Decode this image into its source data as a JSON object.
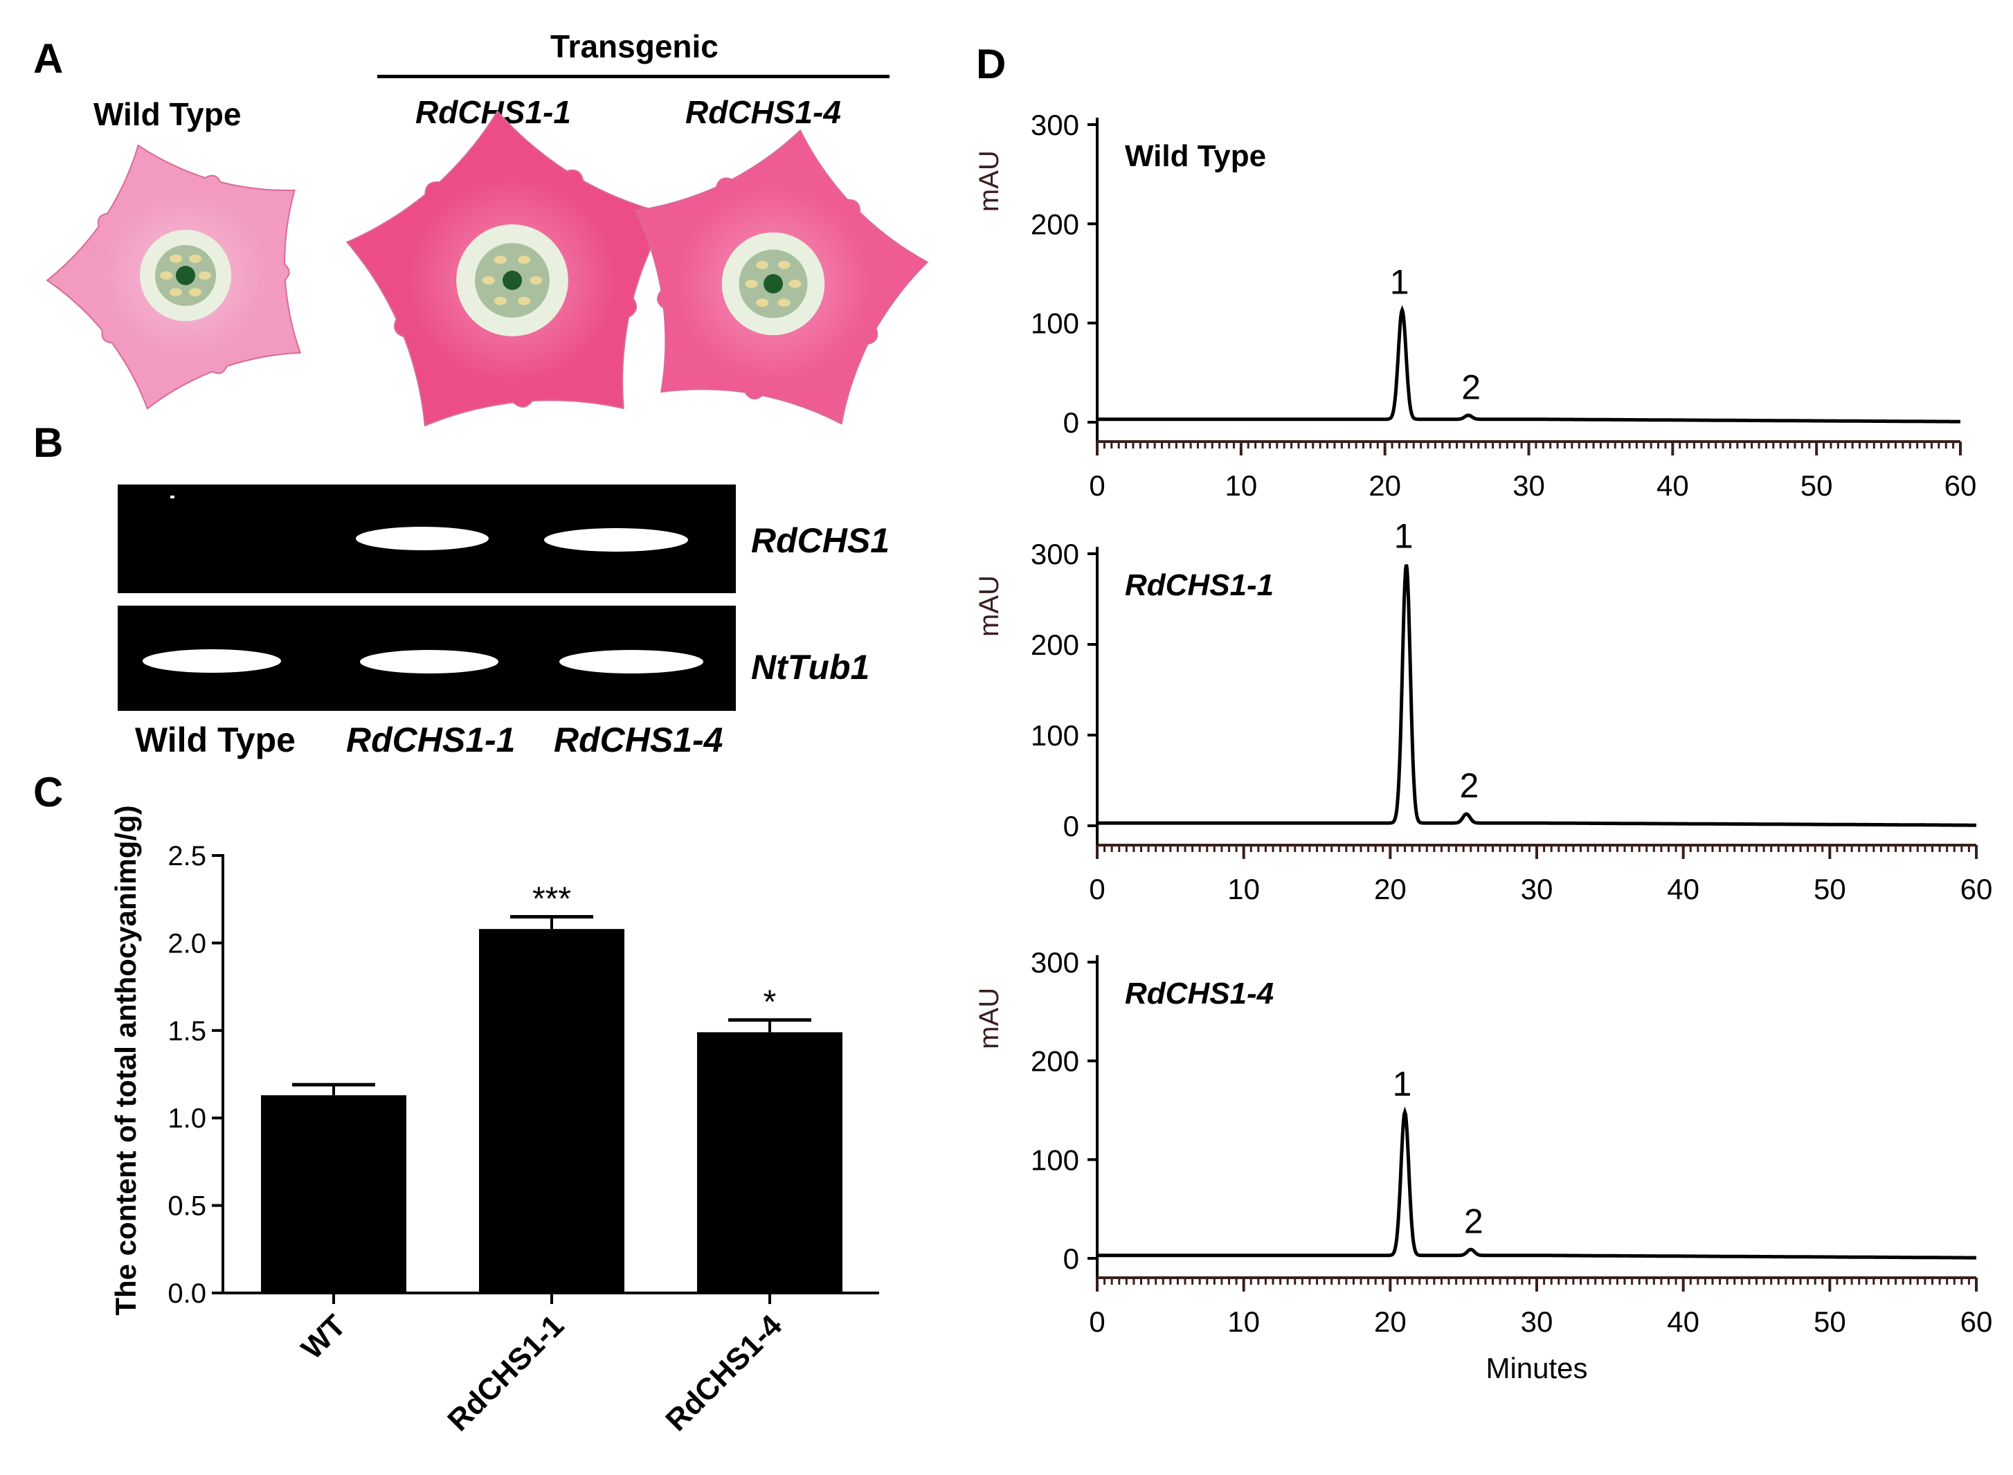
{
  "panels": {
    "a": {
      "letter": "A",
      "transgenic_label": "Transgenic",
      "flowers": [
        {
          "label": "Wild Type",
          "italic": false,
          "color": "#f29ac0"
        },
        {
          "label": "RdCHS1-1",
          "italic": true,
          "color": "#ec4d87"
        },
        {
          "label": "RdCHS1-4",
          "italic": true,
          "color": "#ef5c93"
        }
      ]
    },
    "b": {
      "letter": "B",
      "lanes": [
        "Wild Type",
        "RdCHS1-1",
        "RdCHS1-4"
      ],
      "genes": [
        "RdCHS1",
        "NtTub1"
      ]
    },
    "c": {
      "letter": "C"
    },
    "d": {
      "letter": "D"
    }
  },
  "chart_data": [
    {
      "type": "bar",
      "panel": "C",
      "categories": [
        "WT",
        "RdCHS1-1",
        "RdCHS1-4"
      ],
      "values": [
        1.13,
        2.08,
        1.49
      ],
      "errors": [
        0.06,
        0.07,
        0.07
      ],
      "significance": [
        "",
        "***",
        "*"
      ],
      "ylabel": "The content of total anthocyanimg/g)",
      "ylim": [
        0,
        2.5
      ],
      "yticks": [
        "0.0",
        "0.5",
        "1.0",
        "1.5",
        "2.0",
        "2.5"
      ],
      "bar_color": "#000000"
    },
    {
      "type": "line",
      "panel": "D",
      "sample": "Wild Type",
      "ylabel": "mAU",
      "xlim": [
        0,
        60
      ],
      "ylim": [
        0,
        300
      ],
      "xticks": [
        "0",
        "10",
        "20",
        "30",
        "40",
        "50",
        "60"
      ],
      "yticks": [
        "0",
        "100",
        "200",
        "300"
      ],
      "peaks": [
        {
          "label": "1",
          "x": 21.2,
          "y": 110
        },
        {
          "label": "2",
          "x": 25.8,
          "y": 4
        }
      ]
    },
    {
      "type": "line",
      "panel": "D",
      "sample": "RdCHS1-1",
      "ylabel": "mAU",
      "xlim": [
        0,
        60
      ],
      "ylim": [
        0,
        300
      ],
      "xticks": [
        "0",
        "10",
        "20",
        "30",
        "40",
        "50",
        "60"
      ],
      "yticks": [
        "0",
        "100",
        "200",
        "300"
      ],
      "peaks": [
        {
          "label": "1",
          "x": 21.1,
          "y": 285
        },
        {
          "label": "2",
          "x": 25.2,
          "y": 10
        }
      ]
    },
    {
      "type": "line",
      "panel": "D",
      "sample": "RdCHS1-4",
      "ylabel": "mAU",
      "xlabel": "Minutes",
      "xlim": [
        0,
        60
      ],
      "ylim": [
        0,
        300
      ],
      "xticks": [
        "0",
        "10",
        "20",
        "30",
        "40",
        "50",
        "60"
      ],
      "yticks": [
        "0",
        "100",
        "200",
        "300"
      ],
      "peaks": [
        {
          "label": "1",
          "x": 21.0,
          "y": 145
        },
        {
          "label": "2",
          "x": 25.5,
          "y": 6
        }
      ]
    }
  ]
}
